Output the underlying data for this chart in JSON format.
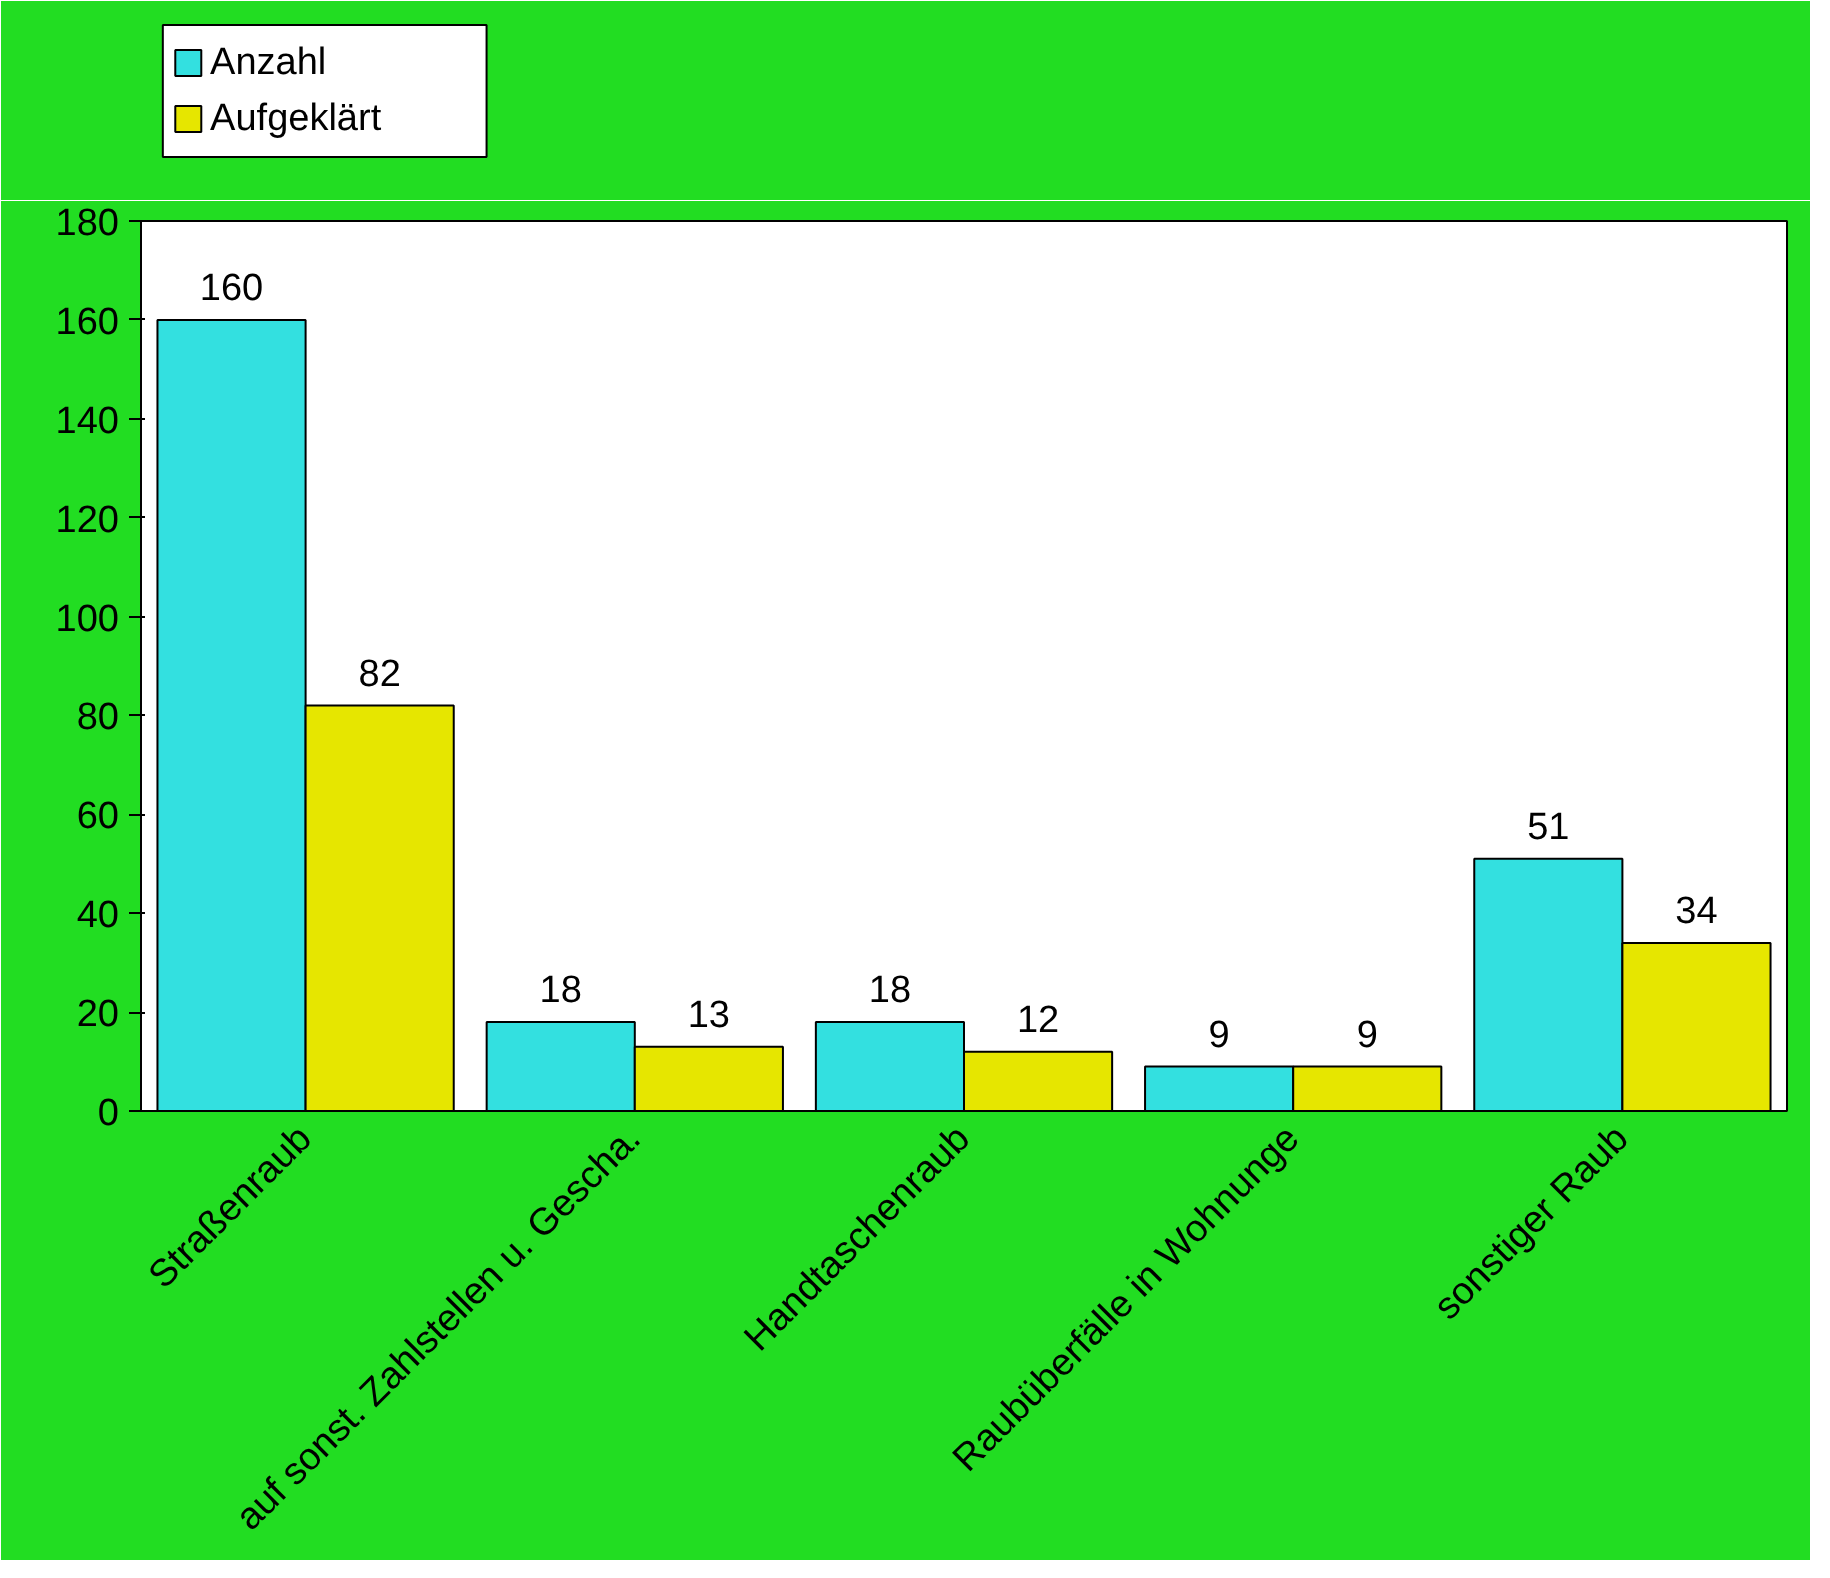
{
  "chart_data": {
    "type": "bar",
    "categories": [
      "Straßenraub",
      "auf sonst. Zahlstellen u. Gescha.",
      "Handtaschenraub",
      "Raubüberfälle in Wohnunge",
      "sonstiger Raub"
    ],
    "series": [
      {
        "name": "Anzahl",
        "color": "#33e0e0",
        "values": [
          160,
          18,
          18,
          9,
          51
        ]
      },
      {
        "name": "Aufgeklärt",
        "color": "#e6e600",
        "values": [
          82,
          13,
          12,
          9,
          34
        ]
      }
    ],
    "ylim": [
      0,
      180
    ],
    "yticks": [
      0,
      20,
      40,
      60,
      80,
      100,
      120,
      140,
      160,
      180
    ],
    "grid": false,
    "legend": "top left",
    "data_labels": true
  }
}
